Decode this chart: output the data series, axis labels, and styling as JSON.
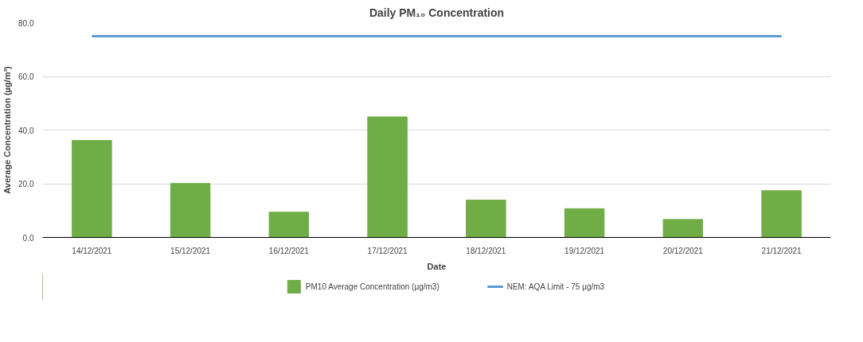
{
  "chart_data": {
    "type": "bar",
    "title": "Daily PM₁₀ Concentration",
    "xlabel": "Date",
    "ylabel": "Average Concentration (µg/m³)",
    "categories": [
      "14/12/2021",
      "15/12/2021",
      "16/12/2021",
      "17/12/2021",
      "18/12/2021",
      "19/12/2021",
      "20/12/2021",
      "21/12/2021"
    ],
    "series": [
      {
        "name": "PM10 Average Concentration (µg/m3)",
        "color": "#70ad47",
        "values": [
          36.1,
          20.1,
          9.4,
          44.9,
          13.9,
          10.7,
          6.7,
          17.4
        ]
      },
      {
        "name": "NEM: AQA Limit - 75 µg/m3",
        "color": "#5b9bd5",
        "type": "line",
        "values": [
          75,
          75,
          75,
          75,
          75,
          75,
          75,
          75
        ]
      }
    ],
    "ylim": [
      0,
      80
    ],
    "yticks": [
      {
        "value": 0,
        "label": "0.0"
      },
      {
        "value": 20,
        "label": "20.0"
      },
      {
        "value": 40,
        "label": "40.0"
      },
      {
        "value": 60,
        "label": "60.0"
      },
      {
        "value": 80,
        "label": "80.0"
      }
    ],
    "grid": "y",
    "legend": "bottom"
  }
}
